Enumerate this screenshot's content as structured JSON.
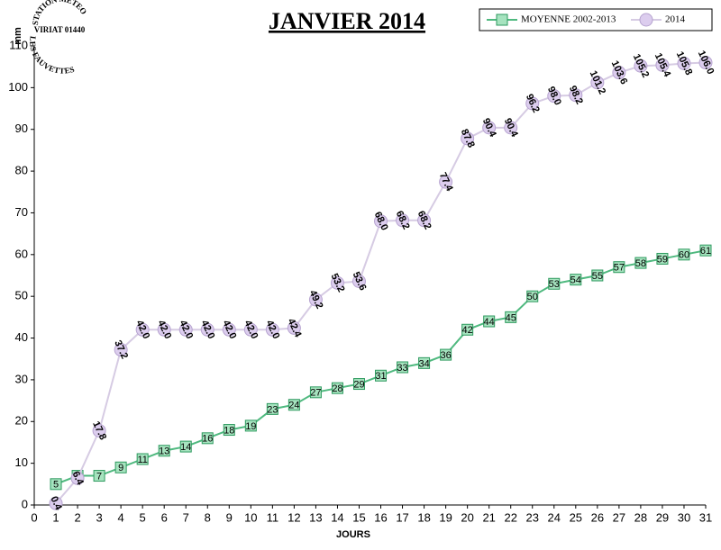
{
  "logo": {
    "line1": "STATION METEO",
    "line2": "VIRIAT 01440",
    "line3": "LES FAUVETTES"
  },
  "chart_data": {
    "type": "line",
    "title": "JANVIER 2014",
    "ylabel": "mm",
    "xlabel": "JOURS",
    "x": [
      1,
      2,
      3,
      4,
      5,
      6,
      7,
      8,
      9,
      10,
      11,
      12,
      13,
      14,
      15,
      16,
      17,
      18,
      19,
      20,
      21,
      22,
      23,
      24,
      25,
      26,
      27,
      28,
      29,
      30,
      31
    ],
    "xlim": [
      0,
      31
    ],
    "xticks": [
      0,
      1,
      2,
      3,
      4,
      5,
      6,
      7,
      8,
      9,
      10,
      11,
      12,
      13,
      14,
      15,
      16,
      17,
      18,
      19,
      20,
      21,
      22,
      23,
      24,
      25,
      26,
      27,
      28,
      29,
      30,
      31
    ],
    "ylim": [
      0,
      110
    ],
    "yticks": [
      0,
      10,
      20,
      30,
      40,
      50,
      60,
      70,
      80,
      90,
      100,
      110
    ],
    "grid": false,
    "legend": "top-right",
    "series": [
      {
        "name": "MOYENNE 2002-2013",
        "color": "#4fb97f",
        "marker": "square",
        "values": [
          5,
          7,
          7,
          9,
          11,
          13,
          14,
          16,
          18,
          19,
          23,
          24,
          27,
          28,
          29,
          31,
          33,
          34,
          36,
          42,
          44,
          45,
          50,
          53,
          54,
          55,
          57,
          58,
          59,
          60,
          61
        ]
      },
      {
        "name": "2014",
        "color": "#d6cbe3",
        "marker": "circle",
        "values": [
          0.4,
          6.4,
          17.8,
          37.2,
          42,
          42,
          42,
          42,
          42,
          42,
          42,
          42.4,
          49.2,
          53.2,
          53.6,
          68,
          68.2,
          68.2,
          77.4,
          87.8,
          90.4,
          90.4,
          96.2,
          98,
          98.2,
          101.2,
          103.6,
          105.2,
          105.4,
          105.8,
          106
        ],
        "value_labels": [
          "0.4",
          "6.4",
          "17.8",
          "37.2",
          "42.0",
          "42.0",
          "42.0",
          "42.0",
          "42.0",
          "42.0",
          "42.0",
          "42.4",
          "49.2",
          "53.2",
          "53.6",
          "68.0",
          "68.2",
          "68.2",
          "77.4",
          "87.8",
          "90.4",
          "90.4",
          "96.2",
          "98.0",
          "98.2",
          "101.2",
          "103.6",
          "105.2",
          "105.4",
          "105.8",
          "106.0"
        ]
      }
    ]
  }
}
